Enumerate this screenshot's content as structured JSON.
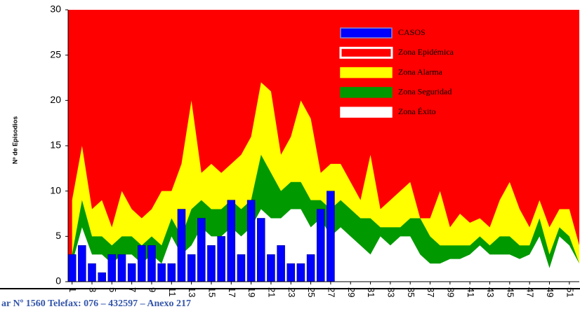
{
  "chart_data": {
    "type": "endemic",
    "y_label": "Nº de Episodios",
    "x": [
      1,
      2,
      3,
      4,
      5,
      6,
      7,
      8,
      9,
      10,
      11,
      12,
      13,
      14,
      15,
      16,
      17,
      18,
      19,
      20,
      21,
      22,
      23,
      24,
      25,
      26,
      27,
      28,
      29,
      30,
      31,
      32,
      33,
      34,
      35,
      36,
      37,
      38,
      39,
      40,
      41,
      42,
      43,
      44,
      45,
      46,
      47,
      48,
      49,
      50,
      51,
      52
    ],
    "xlim": [
      0.6,
      52
    ],
    "xticks": [
      1,
      3,
      5,
      7,
      9,
      11,
      13,
      15,
      17,
      19,
      21,
      23,
      25,
      27,
      29,
      31,
      33,
      35,
      37,
      39,
      41,
      43,
      45,
      47,
      49,
      51
    ],
    "ylim": [
      0,
      30
    ],
    "yticks": [
      0,
      5,
      10,
      15,
      20,
      25,
      30
    ],
    "series": [
      {
        "name": "CASOS",
        "color": "#0000ff",
        "kind": "bar",
        "values": [
          3,
          4,
          2,
          1,
          3,
          3,
          2,
          4,
          4,
          2,
          2,
          8,
          3,
          7,
          4,
          5,
          9,
          3,
          9,
          7,
          3,
          4,
          2,
          2,
          3,
          8,
          10,
          null,
          null,
          null,
          null,
          null,
          null,
          null,
          null,
          null,
          null,
          null,
          null,
          null,
          null,
          null,
          null,
          null,
          null,
          null,
          null,
          null,
          null,
          null,
          null,
          null
        ]
      },
      {
        "name": "Zona Epidémica",
        "color": "#ff0000",
        "kind": "background"
      },
      {
        "name": "Zona Alarma",
        "color": "#ffff00",
        "kind": "area",
        "values": [
          9,
          15,
          8,
          9,
          6,
          10,
          8,
          7,
          8,
          10,
          10,
          13,
          20,
          12,
          13,
          12,
          13,
          14,
          16,
          22,
          21,
          14,
          16,
          20,
          18,
          12,
          13,
          13,
          11,
          9,
          14,
          8,
          9,
          10,
          11,
          7,
          7,
          10,
          6,
          7.5,
          6.5,
          7,
          6,
          9,
          11,
          8,
          6,
          9,
          6,
          8,
          8,
          4
        ]
      },
      {
        "name": "Zona Seguridad",
        "color": "#009900",
        "kind": "area",
        "values": [
          3,
          9,
          5,
          5,
          4,
          5,
          5,
          4,
          5,
          4,
          7,
          5,
          8,
          9,
          8,
          8,
          9,
          8,
          9,
          14,
          12,
          10,
          11,
          11,
          9,
          9,
          8,
          9,
          8,
          7,
          7,
          6,
          6,
          6,
          7,
          7,
          5,
          4,
          4,
          4,
          4,
          5,
          4,
          5,
          5,
          4,
          4,
          7,
          3,
          6,
          5,
          2
        ]
      },
      {
        "name": "Zona Éxito",
        "color": "#ffffff",
        "kind": "area",
        "values": [
          2,
          6,
          3,
          3,
          2,
          3,
          3,
          2,
          3,
          2,
          5,
          3,
          4,
          6,
          5,
          5,
          6,
          5,
          6,
          8,
          7,
          7,
          8,
          8,
          6,
          7,
          5,
          6,
          5,
          4,
          3,
          5,
          4,
          5,
          5,
          3,
          2,
          2,
          2.5,
          2.5,
          3,
          4,
          3,
          3,
          3,
          2.5,
          3,
          5,
          1.5,
          5,
          4,
          2
        ]
      }
    ]
  },
  "footer": "ar Nº 1560 Telefax: 076 – 432597 – Anexo 217"
}
